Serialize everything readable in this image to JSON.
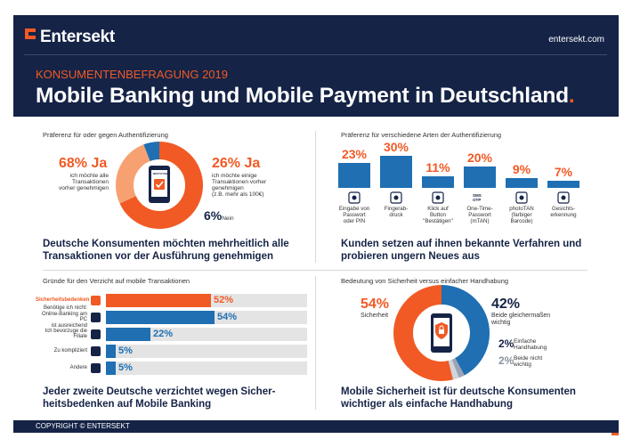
{
  "brand": {
    "name": "Entersekt",
    "site": "entersekt.com",
    "accent": "#f15a24",
    "navy": "#152346",
    "blue": "#1f6fb2"
  },
  "header": {
    "kicker": "KONSUMENTENBEFRAGUNG 2019",
    "title": "Mobile Banking und Mobile Payment in Deutschland",
    "title_dot": "."
  },
  "q1": {
    "heading": "Präferenz für oder gegen Authentifizierung",
    "ja_pct": "68% Ja",
    "ja_desc": [
      "ich möchte alle",
      "Transaktionen",
      "vorher genehmigen"
    ],
    "ja2_pct": "26% Ja",
    "ja2_desc": [
      "ich möchte einige",
      "Transaktionen vorher",
      "genehmigen",
      "(z.B. mehr als 100€)"
    ],
    "nein_pct": "6%",
    "nein_label": "Nein",
    "phone_label": "BESTÄTIGEN",
    "donut_values": [
      68,
      26,
      6
    ],
    "conclusion": [
      "Deutsche Konsumenten möchten mehrheitlich alle",
      "Transaktionen vor der Ausführung genehmigen"
    ]
  },
  "q2": {
    "heading": "Präferenz für verschiedene Arten der Authentifizierung",
    "methods": [
      {
        "pct": "23%",
        "value": 23,
        "label": [
          "Eingabe von",
          "Passwort",
          "oder PIN"
        ],
        "icon": "keypad-icon"
      },
      {
        "pct": "30%",
        "value": 30,
        "label": [
          "Fingerab-",
          "druck"
        ],
        "icon": "fingerprint-icon"
      },
      {
        "pct": "11%",
        "value": 11,
        "label": [
          "Klick auf",
          "Button",
          "\"Bestätigen\""
        ],
        "icon": "button-click-icon"
      },
      {
        "pct": "20%",
        "value": 20,
        "label": [
          "One-Time-",
          "Passwort",
          "(mTAN)"
        ],
        "icon": "sms-otp-icon",
        "icon_text": "SMS OTP"
      },
      {
        "pct": "9%",
        "value": 9,
        "label": [
          "photoTAN",
          "(farbiger",
          "Barcode)"
        ],
        "icon": "qr-code-icon"
      },
      {
        "pct": "7%",
        "value": 7,
        "label": [
          "Gesichts-",
          "erkennung"
        ],
        "icon": "face-id-icon"
      }
    ],
    "conclusion": [
      "Kunden setzen auf ihnen bekannte Verfahren und",
      "probieren ungern Neues aus"
    ]
  },
  "q3": {
    "heading": "Gründe für den Verzicht auf mobile Transaktionen",
    "rows": [
      {
        "label": [
          "Sicherheitsbedenken"
        ],
        "pct": "52%",
        "value": 52,
        "highlight": true,
        "icon": "shield-lock-icon"
      },
      {
        "label": [
          "Benötige ich nicht:",
          "Online-Banking am PC",
          "ist ausreichend"
        ],
        "pct": "54%",
        "value": 54,
        "highlight": false,
        "icon": "laptop-icon"
      },
      {
        "label": [
          "Ich bevorzuge die Filiale"
        ],
        "pct": "22%",
        "value": 22,
        "highlight": false,
        "icon": "bank-icon"
      },
      {
        "label": [
          "Zu kompliziert"
        ],
        "pct": "5%",
        "value": 5,
        "highlight": false,
        "icon": "gear-icon"
      },
      {
        "label": [
          "Andere"
        ],
        "pct": "5%",
        "value": 5,
        "highlight": false,
        "icon": "other-icon"
      }
    ],
    "conclusion": [
      "Jeder zweite Deutsche verzichtet wegen Sicher-",
      "heitsbedenken auf Mobile Banking"
    ]
  },
  "q4": {
    "heading": "Bedeutung von Sicherheit versus einfacher Handhabung",
    "sicherheit_pct": "54%",
    "sicherheit_label": "Sicherheit",
    "beide_pct": "42%",
    "beide_label": [
      "Beide gleichermaßen",
      "wichtig"
    ],
    "einfach_pct": "2%",
    "einfach_label": [
      "Einfache",
      "Handhabung"
    ],
    "nicht_pct": "2%",
    "nicht_label": [
      "Beide nicht",
      "wichtig"
    ],
    "donut_values": [
      54,
      42,
      2,
      2
    ],
    "conclusion": [
      "Mobile Sicherheit ist für deutsche Konsumenten",
      "wichtiger als einfache Handhabung"
    ]
  },
  "footer": {
    "copyright": "COPYRIGHT © ENTERSEKT"
  }
}
